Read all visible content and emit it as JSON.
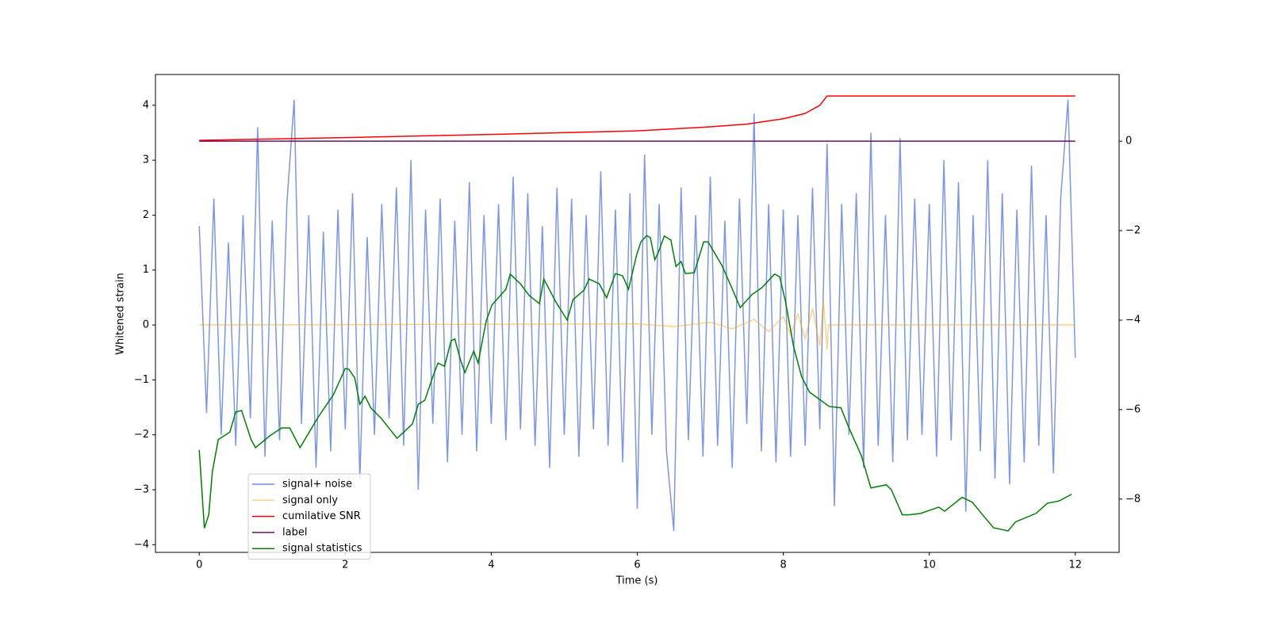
{
  "chart_data": {
    "type": "line",
    "xlabel": "Time (s)",
    "ylabel": "Whitened strain",
    "xlim": [
      -0.6,
      12.6
    ],
    "xticks": [
      0,
      2,
      4,
      6,
      8,
      10,
      12
    ],
    "ylim": [
      -4.14,
      4.56
    ],
    "yticks": [
      {
        "value": -4,
        "label": "−4"
      },
      {
        "value": -3,
        "label": "−3"
      },
      {
        "value": -2,
        "label": "−2"
      },
      {
        "value": -1,
        "label": "−1"
      },
      0,
      1,
      2,
      3,
      4
    ],
    "y2lim": [
      -9.19,
      1.49
    ],
    "y2ticks": [
      {
        "value": -8,
        "label": "−8"
      },
      {
        "value": -6,
        "label": "−6"
      },
      {
        "value": -4,
        "label": "−4"
      },
      {
        "value": -2,
        "label": "−2"
      },
      0
    ],
    "legend": "lower left",
    "series": [
      {
        "name": "signal+ noise",
        "color": "#6d8be6",
        "x": [
          0,
          0.1,
          0.2,
          0.3,
          0.4,
          0.5,
          0.6,
          0.7,
          0.8,
          0.9,
          1,
          1.1,
          1.2,
          1.3,
          1.4,
          1.5,
          1.6,
          1.7,
          1.8,
          1.9,
          2,
          2.1,
          2.2,
          2.3,
          2.4,
          2.5,
          2.6,
          2.7,
          2.8,
          2.9,
          3,
          3.1,
          3.2,
          3.3,
          3.4,
          3.5,
          3.6,
          3.7,
          3.8,
          3.9,
          4,
          4.1,
          4.2,
          4.3,
          4.4,
          4.5,
          4.6,
          4.7,
          4.8,
          4.9,
          5,
          5.1,
          5.2,
          5.3,
          5.4,
          5.5,
          5.6,
          5.7,
          5.8,
          5.9,
          6,
          6.1,
          6.2,
          6.3,
          6.4,
          6.5,
          6.6,
          6.7,
          6.8,
          6.9,
          7,
          7.1,
          7.2,
          7.3,
          7.4,
          7.5,
          7.6,
          7.7,
          7.8,
          7.9,
          8,
          8.1,
          8.2,
          8.3,
          8.4,
          8.5,
          8.6,
          8.7,
          8.8,
          8.9,
          9,
          9.1,
          9.2,
          9.3,
          9.4,
          9.5,
          9.6,
          9.7,
          9.8,
          9.9,
          10,
          10.1,
          10.2,
          10.3,
          10.4,
          10.5,
          10.6,
          10.7,
          10.8,
          10.9,
          11,
          11.1,
          11.2,
          11.3,
          11.4,
          11.5,
          11.6,
          11.7,
          11.8,
          11.9,
          12
        ],
        "values": [
          1.8,
          -1.6,
          2.3,
          -2.0,
          1.5,
          -2.2,
          2.0,
          -1.7,
          3.6,
          -2.4,
          1.9,
          -2.1,
          2.2,
          4.1,
          -1.8,
          2.0,
          -2.6,
          1.7,
          -2.3,
          2.1,
          -1.9,
          2.4,
          -2.8,
          1.6,
          -2.0,
          2.2,
          -1.7,
          2.5,
          -2.2,
          3.0,
          -3.0,
          2.1,
          -1.8,
          2.3,
          -2.5,
          1.9,
          -2.0,
          2.6,
          -2.3,
          2.0,
          -1.8,
          2.2,
          -2.1,
          2.7,
          -1.9,
          2.4,
          -2.2,
          1.8,
          -2.6,
          2.5,
          -2.0,
          2.3,
          -2.4,
          2.0,
          -1.9,
          2.8,
          -2.2,
          2.1,
          -2.5,
          2.4,
          -3.35,
          3.1,
          -2.0,
          2.2,
          -2.3,
          -3.75,
          2.5,
          -2.1,
          2.0,
          -2.4,
          2.7,
          -2.2,
          1.9,
          -2.6,
          2.3,
          -1.8,
          3.85,
          -2.3,
          2.2,
          -2.5,
          2.1,
          -2.4,
          2.0,
          -2.2,
          2.5,
          -1.9,
          3.3,
          -3.3,
          2.2,
          -2.0,
          2.4,
          -2.6,
          3.5,
          -2.2,
          2.0,
          -2.5,
          3.4,
          -2.1,
          2.3,
          -2.0,
          2.2,
          -2.4,
          3.0,
          -2.1,
          2.6,
          -3.4,
          2.0,
          -2.3,
          3.0,
          -2.8,
          2.4,
          -2.9,
          2.1,
          -2.5,
          2.9,
          -2.2,
          2.0,
          -2.7,
          2.3,
          4.1,
          -0.6
        ]
      },
      {
        "name": "signal only",
        "color": "#ffa500",
        "x": [
          0,
          6,
          6.5,
          7,
          7.3,
          7.6,
          7.8,
          8.0,
          8.1,
          8.2,
          8.3,
          8.4,
          8.5,
          8.55,
          8.6,
          8.62,
          12
        ],
        "values": [
          0,
          0.02,
          -0.03,
          0.05,
          -0.07,
          0.1,
          -0.12,
          0.15,
          -0.18,
          0.2,
          -0.25,
          0.3,
          -0.38,
          0.42,
          -0.45,
          0,
          0
        ]
      },
      {
        "name": "cumilative SNR",
        "color": "#ff0000",
        "axis": "y2",
        "x": [
          0,
          2,
          4,
          6,
          7,
          7.5,
          8,
          8.3,
          8.5,
          8.6,
          12
        ],
        "values": [
          0.02,
          0.08,
          0.15,
          0.23,
          0.32,
          0.38,
          0.5,
          0.62,
          0.8,
          1.01,
          1.01
        ]
      },
      {
        "name": "label",
        "color": "#6a0f6a",
        "axis": "y2",
        "x": [
          0,
          12
        ],
        "values": [
          0,
          0
        ]
      },
      {
        "name": "signal statistics",
        "color": "#008000",
        "axis": "y2",
        "x": [
          0,
          0.07,
          0.13,
          0.18,
          0.26,
          0.42,
          0.5,
          0.58,
          0.71,
          0.77,
          0.97,
          1.13,
          1.24,
          1.38,
          1.62,
          1.84,
          2,
          2.05,
          2.13,
          2.2,
          2.27,
          2.35,
          2.49,
          2.71,
          2.92,
          3,
          3.09,
          3.2,
          3.27,
          3.36,
          3.45,
          3.5,
          3.58,
          3.64,
          3.76,
          3.82,
          3.93,
          4.01,
          4.2,
          4.26,
          4.4,
          4.52,
          4.66,
          4.72,
          4.88,
          5.04,
          5.12,
          5.27,
          5.34,
          5.48,
          5.58,
          5.7,
          5.8,
          5.88,
          5.99,
          6.05,
          6.13,
          6.18,
          6.24,
          6.29,
          6.37,
          6.46,
          6.53,
          6.6,
          6.66,
          6.78,
          6.91,
          6.97,
          7.16,
          7.29,
          7.41,
          7.57,
          7.71,
          7.88,
          7.95,
          8.03,
          8.14,
          8.25,
          8.36,
          8.63,
          8.79,
          8.9,
          9.07,
          9.2,
          9.41,
          9.48,
          9.63,
          9.72,
          9.88,
          10.13,
          10.21,
          10.45,
          10.59,
          10.75,
          10.88,
          11.08,
          11.18,
          11.46,
          11.62,
          11.78,
          11.95
        ],
        "values": [
          -6.9,
          -8.65,
          -8.35,
          -7.38,
          -6.67,
          -6.5,
          -6.05,
          -6.02,
          -6.67,
          -6.85,
          -6.58,
          -6.41,
          -6.41,
          -6.85,
          -6.19,
          -5.66,
          -5.08,
          -5.1,
          -5.29,
          -5.88,
          -5.7,
          -5.96,
          -6.19,
          -6.64,
          -6.32,
          -5.88,
          -5.79,
          -5.26,
          -4.96,
          -5.03,
          -4.46,
          -4.42,
          -4.9,
          -5.17,
          -4.69,
          -4.96,
          -4.02,
          -3.66,
          -3.31,
          -2.97,
          -3.19,
          -3.45,
          -3.63,
          -3.08,
          -3.58,
          -4.0,
          -3.54,
          -3.33,
          -3.08,
          -3.19,
          -3.5,
          -2.96,
          -3.01,
          -3.31,
          -2.55,
          -2.25,
          -2.11,
          -2.16,
          -2.65,
          -2.48,
          -2.12,
          -2.21,
          -2.8,
          -2.69,
          -2.96,
          -2.94,
          -2.25,
          -2.25,
          -2.78,
          -3.26,
          -3.72,
          -3.43,
          -3.27,
          -2.97,
          -3.03,
          -3.58,
          -4.58,
          -5.26,
          -5.61,
          -5.93,
          -5.96,
          -6.41,
          -7.03,
          -7.75,
          -7.68,
          -7.79,
          -8.35,
          -8.35,
          -8.32,
          -8.18,
          -8.27,
          -7.96,
          -8.07,
          -8.39,
          -8.64,
          -8.71,
          -8.51,
          -8.32,
          -8.09,
          -8.04,
          -7.89
        ]
      }
    ]
  }
}
